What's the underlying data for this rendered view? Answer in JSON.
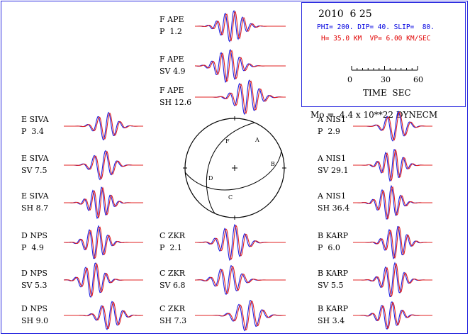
{
  "header": {
    "date": "2010  6 25",
    "params": "PHI= 200. DIP= 40. SLIP=  80.",
    "depth": "H= 35.0 KM  VP= 6.00 KM/SEC",
    "scale_ticks": [
      "0",
      "30",
      "60"
    ],
    "scale_unit": "TIME  SEC",
    "moment": "Mo =  4.4 x 10**22 DYNECM"
  },
  "colors": {
    "observed": "#2020e0",
    "synthetic": "#e02020",
    "frame": "#2a2adf"
  },
  "focal_mechanism": {
    "labels": [
      "F",
      "A",
      "B",
      "C",
      "D"
    ],
    "strike": 200,
    "dip": 40,
    "slip": 80
  },
  "traces": [
    {
      "station": "F APE",
      "phase": "P  1.2",
      "col": 1,
      "row": 0
    },
    {
      "station": "F APE",
      "phase": "SV 4.9",
      "col": 1,
      "row": 1
    },
    {
      "station": "F APE",
      "phase": "SH 12.6",
      "col": 1,
      "row": 2
    },
    {
      "station": "E SIVA",
      "phase": "P  3.4",
      "col": 0,
      "row": 3
    },
    {
      "station": "E SIVA",
      "phase": "SV 7.5",
      "col": 0,
      "row": 4
    },
    {
      "station": "E SIVA",
      "phase": "SH 8.7",
      "col": 0,
      "row": 5
    },
    {
      "station": "D NPS",
      "phase": "P  4.9",
      "col": 0,
      "row": 6
    },
    {
      "station": "D NPS",
      "phase": "SV 5.3",
      "col": 0,
      "row": 7
    },
    {
      "station": "D NPS",
      "phase": "SH 9.0",
      "col": 0,
      "row": 8
    },
    {
      "station": "A NIS1",
      "phase": "P  2.9",
      "col": 2,
      "row": 3
    },
    {
      "station": "A NIS1",
      "phase": "SV 29.1",
      "col": 2,
      "row": 4
    },
    {
      "station": "A NIS1",
      "phase": "SH 36.4",
      "col": 2,
      "row": 5
    },
    {
      "station": "C ZKR",
      "phase": "P  2.1",
      "col": 1,
      "row": 6
    },
    {
      "station": "C ZKR",
      "phase": "SV 6.8",
      "col": 1,
      "row": 7
    },
    {
      "station": "C ZKR",
      "phase": "SH 7.3",
      "col": 1,
      "row": 8
    },
    {
      "station": "B KARP",
      "phase": "P  6.0",
      "col": 2,
      "row": 6
    },
    {
      "station": "B KARP",
      "phase": "SV 5.5",
      "col": 2,
      "row": 7
    },
    {
      "station": "B KARP",
      "phase": "SH 3.4",
      "col": 2,
      "row": 8
    }
  ]
}
